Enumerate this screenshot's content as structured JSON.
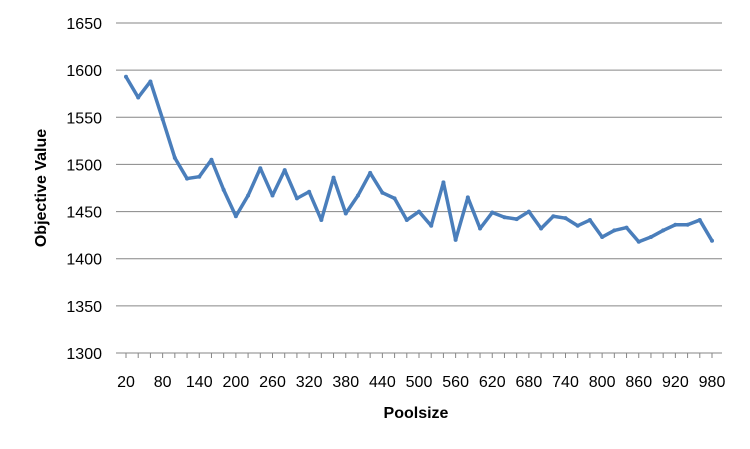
{
  "chart_data": {
    "type": "line",
    "title": "",
    "xlabel": "Poolsize",
    "ylabel": "Objective Value",
    "ylim": [
      1300,
      1650
    ],
    "y_ticks": [
      1300,
      1350,
      1400,
      1450,
      1500,
      1550,
      1600,
      1650
    ],
    "x_tick_labels": [
      "20",
      "80",
      "140",
      "200",
      "260",
      "320",
      "380",
      "440",
      "500",
      "560",
      "620",
      "680",
      "740",
      "800",
      "860",
      "920",
      "980"
    ],
    "grid": "horizontal",
    "legend": "none",
    "line_color": "#4a7ebb",
    "x": [
      20,
      40,
      60,
      80,
      100,
      120,
      140,
      160,
      180,
      200,
      220,
      240,
      260,
      280,
      300,
      320,
      340,
      360,
      380,
      400,
      420,
      440,
      460,
      480,
      500,
      520,
      540,
      560,
      580,
      600,
      620,
      640,
      660,
      680,
      700,
      720,
      740,
      760,
      780,
      800,
      820,
      840,
      860,
      880,
      900,
      920,
      940,
      960,
      980
    ],
    "series": [
      {
        "values": [
          1593,
          1571,
          1588,
          1548,
          1507,
          1485,
          1487,
          1505,
          1473,
          1445,
          1467,
          1496,
          1467,
          1494,
          1464,
          1471,
          1441,
          1486,
          1448,
          1467,
          1491,
          1470,
          1464,
          1441,
          1450,
          1435,
          1481,
          1420,
          1465,
          1432,
          1449,
          1444,
          1442,
          1450,
          1432,
          1445,
          1443,
          1435,
          1441,
          1423,
          1430,
          1433,
          1418,
          1423,
          1430,
          1436,
          1436,
          1441,
          1419
        ]
      }
    ]
  }
}
